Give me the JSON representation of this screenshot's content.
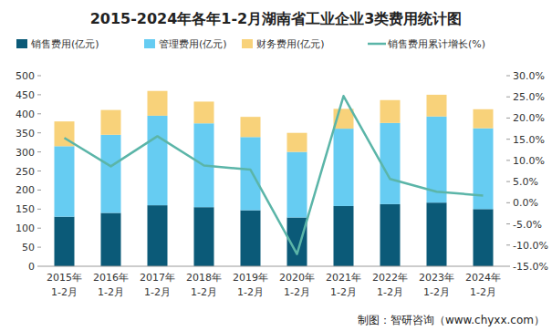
{
  "chart_data": {
    "type": "bar",
    "title": "2015-2024年各年1-2月湖南省工业企业3类费用统计图",
    "categories": [
      "2015年\n1-2月",
      "2016年\n1-2月",
      "2017年\n1-2月",
      "2018年\n1-2月",
      "2019年\n1-2月",
      "2020年\n1-2月",
      "2021年\n1-2月",
      "2022年\n1-2月",
      "2023年\n1-2月",
      "2024年\n1-2月"
    ],
    "stacked": true,
    "series": [
      {
        "name": "销售费用(亿元)",
        "color": "#0b5a78",
        "values": [
          130,
          140,
          160,
          155,
          147,
          128,
          158,
          163,
          167,
          150
        ]
      },
      {
        "name": "管理费用(亿元)",
        "color": "#66ccf2",
        "values": [
          185,
          205,
          235,
          220,
          192,
          172,
          203,
          213,
          226,
          212
        ]
      },
      {
        "name": "财务费用(亿元)",
        "color": "#f8d27a",
        "values": [
          65,
          65,
          65,
          57,
          53,
          50,
          52,
          60,
          57,
          50
        ]
      },
      {
        "name": "销售费用累计增长(%)",
        "color": "#5bb5a8",
        "type": "line",
        "axis": "y2",
        "values": [
          15.3,
          8.6,
          15.7,
          8.8,
          7.8,
          -12.1,
          25.2,
          5.6,
          2.6,
          1.7
        ]
      }
    ],
    "ylim": [
      0,
      500
    ],
    "yticks": [
      0,
      50,
      100,
      150,
      200,
      250,
      300,
      350,
      400,
      450,
      500
    ],
    "y2lim": [
      -15,
      30
    ],
    "y2ticks": [
      {
        "value": -15,
        "label": "-15.0%"
      },
      {
        "value": -10,
        "label": "-10.0%"
      },
      {
        "value": -5,
        "label": "-5.0%"
      },
      {
        "value": 0,
        "label": "0.0%"
      },
      {
        "value": 5,
        "label": "5.0%"
      },
      {
        "value": 10,
        "label": "10.0%"
      },
      {
        "value": 15,
        "label": "15.0%"
      },
      {
        "value": 20,
        "label": "20.0%"
      },
      {
        "value": 25,
        "label": "25.0%"
      },
      {
        "value": 30,
        "label": "30.0%"
      }
    ],
    "grid": false,
    "legend": "top",
    "annotations": [
      "制图：智研咨询（www.chyxx.com）"
    ]
  }
}
